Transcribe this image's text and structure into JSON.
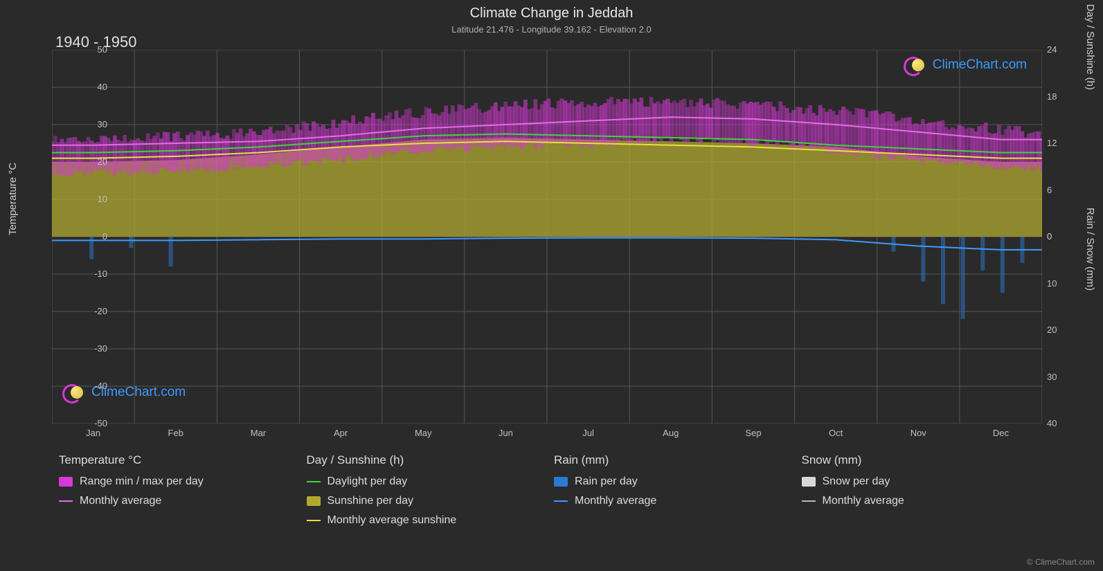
{
  "title": "Climate Change in Jeddah",
  "subtitle": "Latitude 21.476 - Longitude 39.162 - Elevation 2.0",
  "period": "1940 - 1950",
  "brand": "ClimeChart.com",
  "copyright": "© ClimeChart.com",
  "chart": {
    "background": "#2a2a2a",
    "grid_color": "#555555",
    "months": [
      "Jan",
      "Feb",
      "Mar",
      "Apr",
      "May",
      "Jun",
      "Jul",
      "Aug",
      "Sep",
      "Oct",
      "Nov",
      "Dec"
    ],
    "y_left": {
      "label": "Temperature °C",
      "min": -50,
      "max": 50,
      "ticks": [
        50,
        40,
        30,
        20,
        10,
        0,
        -10,
        -20,
        -30,
        -40,
        -50
      ]
    },
    "y_right_top": {
      "label": "Day / Sunshine (h)",
      "ticks": [
        24,
        18,
        12,
        6,
        0
      ]
    },
    "y_right_bottom": {
      "label": "Rain / Snow (mm)",
      "ticks": [
        0,
        10,
        20,
        30,
        40
      ]
    },
    "series": {
      "temp_range": {
        "color": "#d838d8",
        "fill_opacity": 0.55,
        "max": [
          26,
          26.5,
          27.5,
          30,
          33,
          35,
          36,
          36,
          35,
          33,
          30,
          27.5
        ],
        "min": [
          17,
          17.5,
          18.5,
          20,
          23,
          24,
          25,
          26,
          25,
          22,
          20,
          18
        ]
      },
      "temp_avg": {
        "color": "#e86be8",
        "line_width": 2,
        "values": [
          24.5,
          25,
          25.5,
          27,
          29,
          30,
          31,
          32,
          31.5,
          30,
          28,
          26
        ]
      },
      "daylight": {
        "color": "#3dd63d",
        "line_width": 2,
        "values": [
          22.5,
          23,
          24,
          25.5,
          27,
          27.5,
          27,
          26.5,
          26,
          24.5,
          23.5,
          22.5
        ]
      },
      "sunshine_fill": {
        "color": "#b0a830",
        "fill_opacity": 0.75,
        "values": [
          20,
          20.5,
          22,
          24,
          26,
          26.5,
          26,
          25.5,
          25,
          24,
          21.5,
          20
        ]
      },
      "sunshine_avg": {
        "color": "#e8e040",
        "line_width": 2,
        "values": [
          21,
          21.5,
          22.5,
          24,
          25,
          25.5,
          25,
          24.5,
          24,
          23,
          22,
          21
        ]
      },
      "rain_avg": {
        "color": "#3d9bff",
        "line_width": 2,
        "values": [
          -1,
          -1,
          -0.8,
          -0.6,
          -0.6,
          -0.4,
          -0.3,
          -0.3,
          -0.4,
          -0.8,
          -2.5,
          -3.5
        ]
      },
      "rain_bars": {
        "color": "#2a7ad4",
        "opacity": 0.5,
        "spikes": [
          {
            "x": 0.04,
            "v": -6
          },
          {
            "x": 0.08,
            "v": -3
          },
          {
            "x": 0.12,
            "v": -8
          },
          {
            "x": 0.85,
            "v": -4
          },
          {
            "x": 0.88,
            "v": -12
          },
          {
            "x": 0.9,
            "v": -18
          },
          {
            "x": 0.92,
            "v": -22
          },
          {
            "x": 0.94,
            "v": -9
          },
          {
            "x": 0.96,
            "v": -15
          },
          {
            "x": 0.98,
            "v": -7
          }
        ]
      }
    }
  },
  "legend": {
    "temp": {
      "header": "Temperature °C",
      "range": "Range min / max per day",
      "avg": "Monthly average"
    },
    "day": {
      "header": "Day / Sunshine (h)",
      "daylight": "Daylight per day",
      "sunshine": "Sunshine per day",
      "avg": "Monthly average sunshine"
    },
    "rain": {
      "header": "Rain (mm)",
      "perday": "Rain per day",
      "avg": "Monthly average"
    },
    "snow": {
      "header": "Snow (mm)",
      "perday": "Snow per day",
      "avg": "Monthly average"
    }
  },
  "colors": {
    "temp_range": "#d838d8",
    "temp_avg": "#e86be8",
    "daylight": "#3dd63d",
    "sunshine": "#b0a830",
    "sunshine_line": "#e8e040",
    "rain": "#3d9bff",
    "rain_fill": "#2a7ad4",
    "snow": "#d8d8d8",
    "snow_line": "#b8b8b8",
    "logo_c_outer": "#d838d8",
    "logo_c_inner": "#3d9bff"
  }
}
